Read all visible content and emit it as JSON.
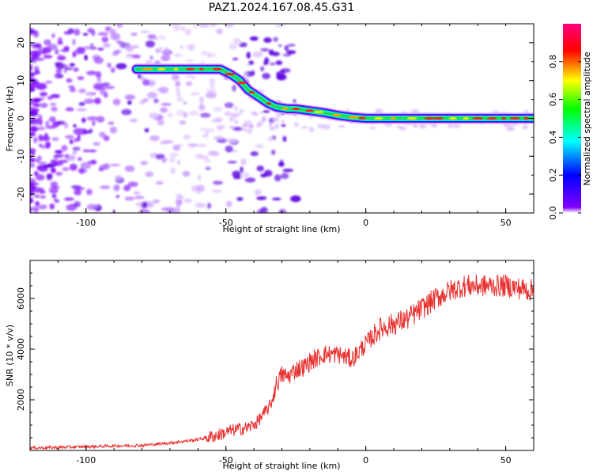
{
  "figure": {
    "title": "PAZ1.2024.167.08.45.G31"
  },
  "chart_data": [
    {
      "type": "heatmap",
      "title": "PAZ1.2024.167.08.45.G31",
      "xlabel": "Height of straight line (km)",
      "ylabel": "Frequency (Hz)",
      "xlim": [
        -120,
        60
      ],
      "ylim": [
        -25,
        25
      ],
      "x_ticks": [
        -100,
        -50,
        0,
        50
      ],
      "y_ticks": [
        -20,
        -10,
        0,
        10,
        20
      ],
      "ridge": {
        "x": [
          -82,
          -70,
          -60,
          -55,
          -52,
          -48,
          -45,
          -42,
          -38,
          -35,
          -32,
          -28,
          -25,
          -20,
          -15,
          -10,
          -5,
          0,
          10,
          20,
          30,
          40,
          50,
          60
        ],
        "frequency": [
          13,
          13,
          13,
          13,
          13,
          11.5,
          10,
          7.5,
          5.5,
          4,
          3,
          2.5,
          2.5,
          2,
          1.5,
          0.8,
          0.3,
          0,
          0,
          0,
          0,
          0,
          0,
          0
        ]
      },
      "colorbar": {
        "label": "Normalized spectral amplitude",
        "range": [
          0,
          1
        ],
        "ticks": [
          "0.0",
          "0.2",
          "0.4",
          "0.6",
          "0.8"
        ],
        "colormap": [
          "#ffffff",
          "#8000ff",
          "#0000ff",
          "#00ffff",
          "#00ff00",
          "#ffff00",
          "#ff0000",
          "#ff0080"
        ]
      }
    },
    {
      "type": "line",
      "xlabel": "Height of straight line (km)",
      "ylabel": "SNR (10 * v/v)",
      "xlim": [
        -120,
        60
      ],
      "ylim": [
        0,
        7500
      ],
      "x_ticks": [
        -100,
        -50,
        0,
        50
      ],
      "y_ticks": [
        2000,
        4000,
        6000
      ],
      "series_color": "#e8312f",
      "series": [
        {
          "x": [
            -120,
            -110,
            -100,
            -90,
            -80,
            -70,
            -62,
            -57,
            -53,
            -49,
            -45,
            -42,
            -39,
            -36,
            -34,
            -32,
            -30,
            -28,
            -25,
            -22,
            -20,
            -15,
            -10,
            -5,
            0,
            5,
            10,
            15,
            20,
            25,
            30,
            35,
            40,
            45,
            50,
            55,
            60
          ],
          "values": [
            100,
            120,
            150,
            180,
            200,
            300,
            400,
            500,
            600,
            750,
            850,
            900,
            1100,
            1500,
            1800,
            2600,
            3000,
            2900,
            3200,
            3300,
            3500,
            3800,
            3800,
            3600,
            4200,
            4800,
            5000,
            5200,
            5600,
            6000,
            6300,
            6500,
            6500,
            6500,
            6500,
            6400,
            6300
          ]
        }
      ]
    }
  ]
}
